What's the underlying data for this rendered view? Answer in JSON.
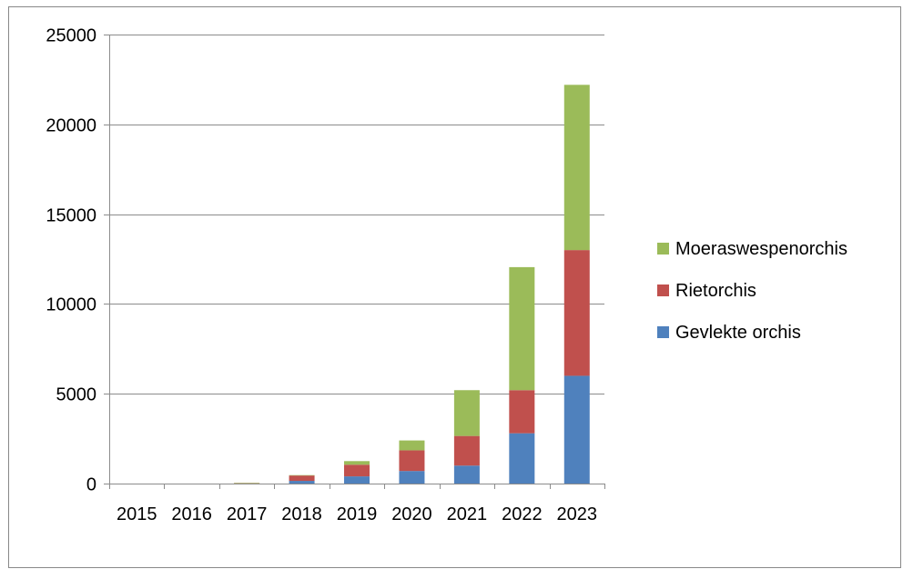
{
  "chart_data": {
    "type": "bar",
    "stacked": true,
    "categories": [
      "2015",
      "2016",
      "2017",
      "2018",
      "2019",
      "2020",
      "2021",
      "2022",
      "2023"
    ],
    "series": [
      {
        "name": "Gevlekte orchis",
        "color": "#4f81bd",
        "values": [
          0,
          0,
          10,
          150,
          400,
          700,
          1000,
          2800,
          6000
        ]
      },
      {
        "name": "Rietorchis",
        "color": "#c0504d",
        "values": [
          0,
          0,
          20,
          300,
          650,
          1150,
          1650,
          2400,
          7000
        ]
      },
      {
        "name": "Moeraswespenorchis",
        "color": "#9bbb59",
        "values": [
          0,
          0,
          5,
          20,
          200,
          550,
          2550,
          6850,
          9200
        ]
      }
    ],
    "ylim": [
      0,
      25000
    ],
    "yticks": [
      0,
      5000,
      10000,
      15000,
      20000,
      25000
    ],
    "grid": true,
    "legend_position": "right",
    "title": "",
    "xlabel": "",
    "ylabel": ""
  }
}
